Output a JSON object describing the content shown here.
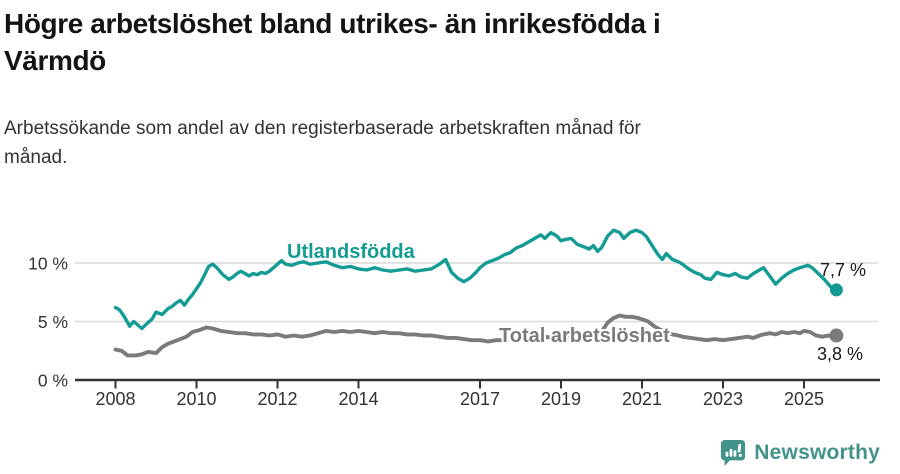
{
  "header": {
    "title_lines": [
      "Högre arbetslöshet bland utrikes- än inrikesfödda i",
      "Värmdö"
    ],
    "subtitle_lines": [
      "Arbetssökande som andel av den registerbaserade arbetskraften månad för",
      "månad."
    ]
  },
  "chart_data": {
    "type": "line",
    "x_unit": "year (monthly observations)",
    "x_range": [
      2008.0,
      2025.8
    ],
    "ylim": [
      0,
      14
    ],
    "grid": "horizontal gridlines at 5 % and 10 % only",
    "legend_position": "labels drawn on lines",
    "y_ticks": [
      {
        "value": 0,
        "label": "0 %"
      },
      {
        "value": 5,
        "label": "5 %"
      },
      {
        "value": 10,
        "label": "10 %"
      }
    ],
    "x_ticks": [
      2008,
      2010,
      2012,
      2014,
      2017,
      2019,
      2021,
      2023,
      2025
    ],
    "series": [
      {
        "id": "utlandsfodda",
        "name": "Utlandsfödda",
        "color": "#149c94",
        "end_label": "7,7 %",
        "end_value": 7.7,
        "points": [
          [
            2008.0,
            6.2
          ],
          [
            2008.1,
            6.0
          ],
          [
            2008.2,
            5.5
          ],
          [
            2008.35,
            4.6
          ],
          [
            2008.45,
            5.0
          ],
          [
            2008.55,
            4.7
          ],
          [
            2008.65,
            4.4
          ],
          [
            2008.8,
            4.9
          ],
          [
            2008.9,
            5.2
          ],
          [
            2009.0,
            5.8
          ],
          [
            2009.15,
            5.6
          ],
          [
            2009.3,
            6.1
          ],
          [
            2009.4,
            6.3
          ],
          [
            2009.5,
            6.6
          ],
          [
            2009.6,
            6.8
          ],
          [
            2009.7,
            6.4
          ],
          [
            2009.8,
            6.9
          ],
          [
            2009.9,
            7.3
          ],
          [
            2010.0,
            7.8
          ],
          [
            2010.1,
            8.3
          ],
          [
            2010.2,
            9.0
          ],
          [
            2010.3,
            9.7
          ],
          [
            2010.4,
            9.9
          ],
          [
            2010.5,
            9.6
          ],
          [
            2010.65,
            9.0
          ],
          [
            2010.8,
            8.6
          ],
          [
            2010.9,
            8.8
          ],
          [
            2011.0,
            9.1
          ],
          [
            2011.1,
            9.3
          ],
          [
            2011.2,
            9.1
          ],
          [
            2011.3,
            8.9
          ],
          [
            2011.4,
            9.1
          ],
          [
            2011.5,
            9.0
          ],
          [
            2011.6,
            9.2
          ],
          [
            2011.7,
            9.1
          ],
          [
            2011.8,
            9.3
          ],
          [
            2011.9,
            9.6
          ],
          [
            2012.0,
            9.9
          ],
          [
            2012.1,
            10.2
          ],
          [
            2012.2,
            9.9
          ],
          [
            2012.35,
            9.8
          ],
          [
            2012.5,
            10.0
          ],
          [
            2012.65,
            10.1
          ],
          [
            2012.8,
            9.9
          ],
          [
            2013.0,
            10.0
          ],
          [
            2013.2,
            10.1
          ],
          [
            2013.4,
            9.8
          ],
          [
            2013.6,
            9.6
          ],
          [
            2013.8,
            9.7
          ],
          [
            2014.0,
            9.5
          ],
          [
            2014.2,
            9.4
          ],
          [
            2014.4,
            9.6
          ],
          [
            2014.6,
            9.4
          ],
          [
            2014.8,
            9.3
          ],
          [
            2015.0,
            9.4
          ],
          [
            2015.2,
            9.5
          ],
          [
            2015.4,
            9.3
          ],
          [
            2015.6,
            9.4
          ],
          [
            2015.8,
            9.5
          ],
          [
            2016.0,
            9.9
          ],
          [
            2016.15,
            10.3
          ],
          [
            2016.3,
            9.2
          ],
          [
            2016.45,
            8.7
          ],
          [
            2016.6,
            8.4
          ],
          [
            2016.75,
            8.7
          ],
          [
            2016.9,
            9.2
          ],
          [
            2017.0,
            9.6
          ],
          [
            2017.15,
            10.0
          ],
          [
            2017.3,
            10.2
          ],
          [
            2017.45,
            10.4
          ],
          [
            2017.6,
            10.7
          ],
          [
            2017.75,
            10.9
          ],
          [
            2017.9,
            11.3
          ],
          [
            2018.05,
            11.5
          ],
          [
            2018.2,
            11.8
          ],
          [
            2018.35,
            12.1
          ],
          [
            2018.5,
            12.4
          ],
          [
            2018.6,
            12.1
          ],
          [
            2018.75,
            12.6
          ],
          [
            2018.9,
            12.3
          ],
          [
            2019.0,
            11.9
          ],
          [
            2019.1,
            12.0
          ],
          [
            2019.25,
            12.1
          ],
          [
            2019.4,
            11.6
          ],
          [
            2019.55,
            11.4
          ],
          [
            2019.7,
            11.2
          ],
          [
            2019.8,
            11.5
          ],
          [
            2019.9,
            11.0
          ],
          [
            2020.0,
            11.3
          ],
          [
            2020.15,
            12.3
          ],
          [
            2020.3,
            12.8
          ],
          [
            2020.45,
            12.6
          ],
          [
            2020.55,
            12.1
          ],
          [
            2020.7,
            12.6
          ],
          [
            2020.85,
            12.8
          ],
          [
            2021.0,
            12.6
          ],
          [
            2021.1,
            12.3
          ],
          [
            2021.25,
            11.5
          ],
          [
            2021.4,
            10.7
          ],
          [
            2021.5,
            10.3
          ],
          [
            2021.6,
            10.8
          ],
          [
            2021.75,
            10.3
          ],
          [
            2021.9,
            10.1
          ],
          [
            2022.0,
            9.9
          ],
          [
            2022.15,
            9.5
          ],
          [
            2022.3,
            9.2
          ],
          [
            2022.45,
            9.0
          ],
          [
            2022.55,
            8.7
          ],
          [
            2022.7,
            8.6
          ],
          [
            2022.85,
            9.2
          ],
          [
            2023.0,
            9.0
          ],
          [
            2023.15,
            8.9
          ],
          [
            2023.3,
            9.1
          ],
          [
            2023.45,
            8.8
          ],
          [
            2023.6,
            8.7
          ],
          [
            2023.75,
            9.1
          ],
          [
            2023.9,
            9.4
          ],
          [
            2024.0,
            9.6
          ],
          [
            2024.15,
            8.9
          ],
          [
            2024.3,
            8.2
          ],
          [
            2024.45,
            8.7
          ],
          [
            2024.6,
            9.1
          ],
          [
            2024.75,
            9.4
          ],
          [
            2024.9,
            9.6
          ],
          [
            2025.0,
            9.7
          ],
          [
            2025.1,
            9.8
          ],
          [
            2025.2,
            9.6
          ],
          [
            2025.35,
            9.1
          ],
          [
            2025.5,
            8.6
          ],
          [
            2025.65,
            8.0
          ],
          [
            2025.8,
            7.7
          ]
        ]
      },
      {
        "id": "total-arbetsloshet",
        "name": "Total arbetslöshet",
        "color": "#7b7b7b",
        "end_label": "3,8 %",
        "end_value": 3.8,
        "points": [
          [
            2008.0,
            2.6
          ],
          [
            2008.15,
            2.5
          ],
          [
            2008.3,
            2.1
          ],
          [
            2008.5,
            2.1
          ],
          [
            2008.65,
            2.2
          ],
          [
            2008.8,
            2.4
          ],
          [
            2009.0,
            2.3
          ],
          [
            2009.15,
            2.8
          ],
          [
            2009.3,
            3.1
          ],
          [
            2009.45,
            3.3
          ],
          [
            2009.6,
            3.5
          ],
          [
            2009.75,
            3.7
          ],
          [
            2009.9,
            4.1
          ],
          [
            2010.1,
            4.3
          ],
          [
            2010.25,
            4.5
          ],
          [
            2010.4,
            4.4
          ],
          [
            2010.6,
            4.2
          ],
          [
            2010.8,
            4.1
          ],
          [
            2011.0,
            4.0
          ],
          [
            2011.2,
            4.0
          ],
          [
            2011.4,
            3.9
          ],
          [
            2011.6,
            3.9
          ],
          [
            2011.8,
            3.8
          ],
          [
            2012.0,
            3.9
          ],
          [
            2012.2,
            3.7
          ],
          [
            2012.4,
            3.8
          ],
          [
            2012.6,
            3.7
          ],
          [
            2012.8,
            3.8
          ],
          [
            2013.0,
            4.0
          ],
          [
            2013.2,
            4.2
          ],
          [
            2013.4,
            4.1
          ],
          [
            2013.6,
            4.2
          ],
          [
            2013.8,
            4.1
          ],
          [
            2014.0,
            4.2
          ],
          [
            2014.2,
            4.1
          ],
          [
            2014.4,
            4.0
          ],
          [
            2014.6,
            4.1
          ],
          [
            2014.8,
            4.0
          ],
          [
            2015.0,
            4.0
          ],
          [
            2015.2,
            3.9
          ],
          [
            2015.4,
            3.9
          ],
          [
            2015.6,
            3.8
          ],
          [
            2015.8,
            3.8
          ],
          [
            2016.0,
            3.7
          ],
          [
            2016.2,
            3.6
          ],
          [
            2016.4,
            3.6
          ],
          [
            2016.6,
            3.5
          ],
          [
            2016.8,
            3.4
          ],
          [
            2017.0,
            3.4
          ],
          [
            2017.2,
            3.3
          ],
          [
            2017.4,
            3.4
          ],
          [
            2017.6,
            3.4
          ],
          [
            2017.8,
            3.5
          ],
          [
            2018.0,
            3.5
          ],
          [
            2018.2,
            3.6
          ],
          [
            2018.4,
            3.7
          ],
          [
            2018.6,
            3.7
          ],
          [
            2018.8,
            3.6
          ],
          [
            2019.0,
            3.7
          ],
          [
            2019.2,
            3.8
          ],
          [
            2019.4,
            3.9
          ],
          [
            2019.6,
            3.9
          ],
          [
            2019.8,
            4.0
          ],
          [
            2020.0,
            4.1
          ],
          [
            2020.15,
            4.9
          ],
          [
            2020.3,
            5.3
          ],
          [
            2020.45,
            5.5
          ],
          [
            2020.6,
            5.4
          ],
          [
            2020.75,
            5.4
          ],
          [
            2020.9,
            5.3
          ],
          [
            2021.0,
            5.2
          ],
          [
            2021.15,
            5.0
          ],
          [
            2021.3,
            4.6
          ],
          [
            2021.45,
            4.3
          ],
          [
            2021.6,
            4.1
          ],
          [
            2021.75,
            3.9
          ],
          [
            2021.9,
            3.8
          ],
          [
            2022.0,
            3.7
          ],
          [
            2022.2,
            3.6
          ],
          [
            2022.4,
            3.5
          ],
          [
            2022.6,
            3.4
          ],
          [
            2022.8,
            3.5
          ],
          [
            2023.0,
            3.4
          ],
          [
            2023.2,
            3.5
          ],
          [
            2023.4,
            3.6
          ],
          [
            2023.6,
            3.7
          ],
          [
            2023.75,
            3.6
          ],
          [
            2023.9,
            3.8
          ],
          [
            2024.0,
            3.9
          ],
          [
            2024.15,
            4.0
          ],
          [
            2024.3,
            3.9
          ],
          [
            2024.45,
            4.1
          ],
          [
            2024.6,
            4.0
          ],
          [
            2024.75,
            4.1
          ],
          [
            2024.9,
            4.0
          ],
          [
            2025.0,
            4.2
          ],
          [
            2025.15,
            4.1
          ],
          [
            2025.3,
            3.8
          ],
          [
            2025.45,
            3.7
          ],
          [
            2025.6,
            3.8
          ],
          [
            2025.7,
            3.7
          ],
          [
            2025.8,
            3.8
          ]
        ]
      }
    ]
  },
  "footer": {
    "brand": "Newsworthy",
    "logo_icon": "bar-chart-speech-bubble",
    "brand_color": "#44938b"
  },
  "colors": {
    "accent": "#149c94",
    "gray_series": "#7b7b7b",
    "grid": "#d9d9d9",
    "axis": "#333333",
    "title": "#141414",
    "subtitle": "#333333",
    "background": "#ffffff"
  }
}
